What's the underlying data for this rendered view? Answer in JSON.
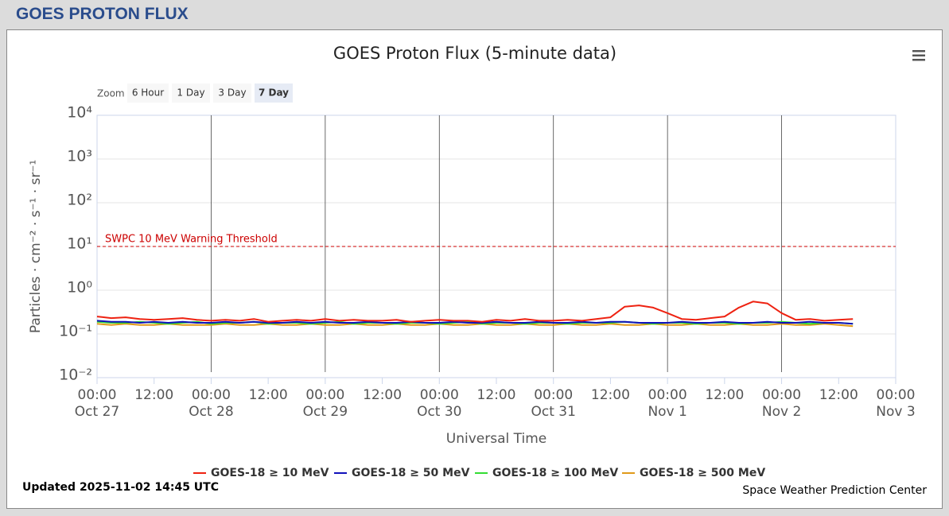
{
  "page_title": "GOES PROTON FLUX",
  "zoom": {
    "label": "Zoom",
    "buttons": [
      "6 Hour",
      "1 Day",
      "3 Day",
      "7 Day"
    ],
    "selected": 3
  },
  "chart_data": {
    "type": "line",
    "title": "GOES Proton Flux (5-minute data)",
    "x_label": "Universal Time",
    "y_label": "Particles · cm⁻² · s⁻¹ · sr⁻¹",
    "log_y": true,
    "grid": true,
    "ylim": [
      0.01,
      10000
    ],
    "yticks": [
      {
        "value": 0.01,
        "label": "10⁻²"
      },
      {
        "value": 0.1,
        "label": "10⁻¹"
      },
      {
        "value": 1,
        "label": "10⁰"
      },
      {
        "value": 10,
        "label": "10¹"
      },
      {
        "value": 100,
        "label": "10²"
      },
      {
        "value": 1000,
        "label": "10³"
      },
      {
        "value": 10000,
        "label": "10⁴"
      }
    ],
    "xlim": [
      "Oct 27 00:00",
      "Nov 3 00:00"
    ],
    "xticks": [
      {
        "value": "Oct 27 00:00",
        "label": "00:00",
        "date": "Oct 27"
      },
      {
        "value": "Oct 27 12:00",
        "label": "12:00"
      },
      {
        "value": "Oct 28 00:00",
        "label": "00:00",
        "date": "Oct 28"
      },
      {
        "value": "Oct 28 12:00",
        "label": "12:00"
      },
      {
        "value": "Oct 29 00:00",
        "label": "00:00",
        "date": "Oct 29"
      },
      {
        "value": "Oct 29 12:00",
        "label": "12:00"
      },
      {
        "value": "Oct 30 00:00",
        "label": "00:00",
        "date": "Oct 30"
      },
      {
        "value": "Oct 30 12:00",
        "label": "12:00"
      },
      {
        "value": "Oct 31 00:00",
        "label": "00:00",
        "date": "Oct 31"
      },
      {
        "value": "Oct 31 12:00",
        "label": "12:00"
      },
      {
        "value": "Nov 1 00:00",
        "label": "00:00",
        "date": "Nov 1"
      },
      {
        "value": "Nov 1 12:00",
        "label": "12:00"
      },
      {
        "value": "Nov 2 00:00",
        "label": "00:00",
        "date": "Nov 2"
      },
      {
        "value": "Nov 2 12:00",
        "label": "12:00"
      },
      {
        "value": "Nov 3 00:00",
        "label": "00:00",
        "date": "Nov 3"
      }
    ],
    "threshold": {
      "value": 10,
      "label": "SWPC 10 MeV Warning Threshold",
      "color": "#cc0000"
    },
    "x": [
      "Oct 27 00:00",
      "Oct 27 03:00",
      "Oct 27 06:00",
      "Oct 27 09:00",
      "Oct 27 12:00",
      "Oct 27 15:00",
      "Oct 27 18:00",
      "Oct 27 21:00",
      "Oct 28 00:00",
      "Oct 28 03:00",
      "Oct 28 06:00",
      "Oct 28 09:00",
      "Oct 28 12:00",
      "Oct 28 15:00",
      "Oct 28 18:00",
      "Oct 28 21:00",
      "Oct 29 00:00",
      "Oct 29 03:00",
      "Oct 29 06:00",
      "Oct 29 09:00",
      "Oct 29 12:00",
      "Oct 29 15:00",
      "Oct 29 18:00",
      "Oct 29 21:00",
      "Oct 30 00:00",
      "Oct 30 03:00",
      "Oct 30 06:00",
      "Oct 30 09:00",
      "Oct 30 12:00",
      "Oct 30 15:00",
      "Oct 30 18:00",
      "Oct 30 21:00",
      "Oct 31 00:00",
      "Oct 31 03:00",
      "Oct 31 06:00",
      "Oct 31 09:00",
      "Oct 31 12:00",
      "Oct 31 15:00",
      "Oct 31 18:00",
      "Oct 31 21:00",
      "Nov 1 00:00",
      "Nov 1 03:00",
      "Nov 1 06:00",
      "Nov 1 09:00",
      "Nov 1 12:00",
      "Nov 1 15:00",
      "Nov 1 18:00",
      "Nov 1 21:00",
      "Nov 2 00:00",
      "Nov 2 03:00",
      "Nov 2 06:00",
      "Nov 2 09:00",
      "Nov 2 12:00",
      "Nov 2 15:00"
    ],
    "series": [
      {
        "name": "GOES-18 ≥ 10 MeV",
        "color": "#ee2211",
        "values": [
          0.25,
          0.23,
          0.24,
          0.22,
          0.21,
          0.22,
          0.23,
          0.21,
          0.2,
          0.21,
          0.2,
          0.22,
          0.19,
          0.2,
          0.21,
          0.2,
          0.22,
          0.2,
          0.21,
          0.2,
          0.2,
          0.21,
          0.19,
          0.2,
          0.21,
          0.2,
          0.2,
          0.19,
          0.21,
          0.2,
          0.22,
          0.2,
          0.2,
          0.21,
          0.2,
          0.22,
          0.24,
          0.42,
          0.45,
          0.4,
          0.3,
          0.22,
          0.21,
          0.23,
          0.25,
          0.4,
          0.55,
          0.5,
          0.3,
          0.21,
          0.22,
          0.2,
          0.21,
          0.22
        ]
      },
      {
        "name": "GOES-18 ≥ 50 MeV",
        "color": "#1111bb",
        "values": [
          0.2,
          0.19,
          0.19,
          0.18,
          0.19,
          0.18,
          0.19,
          0.18,
          0.18,
          0.19,
          0.18,
          0.19,
          0.18,
          0.18,
          0.19,
          0.18,
          0.19,
          0.18,
          0.18,
          0.19,
          0.18,
          0.18,
          0.19,
          0.18,
          0.18,
          0.19,
          0.18,
          0.18,
          0.19,
          0.18,
          0.18,
          0.19,
          0.18,
          0.18,
          0.19,
          0.18,
          0.19,
          0.19,
          0.18,
          0.18,
          0.18,
          0.19,
          0.18,
          0.18,
          0.19,
          0.18,
          0.18,
          0.19,
          0.18,
          0.18,
          0.19,
          0.18,
          0.18,
          0.17
        ]
      },
      {
        "name": "GOES-18 ≥ 100 MeV",
        "color": "#33dd33",
        "values": [
          0.19,
          0.18,
          0.18,
          0.19,
          0.18,
          0.17,
          0.18,
          0.19,
          0.17,
          0.18,
          0.18,
          0.19,
          0.17,
          0.18,
          0.18,
          0.17,
          0.18,
          0.19,
          0.17,
          0.18,
          0.18,
          0.17,
          0.18,
          0.18,
          0.17,
          0.18,
          0.19,
          0.17,
          0.18,
          0.18,
          0.17,
          0.18,
          0.18,
          0.17,
          0.18,
          0.18,
          0.18,
          0.19,
          0.18,
          0.17,
          0.18,
          0.18,
          0.17,
          0.18,
          0.18,
          0.17,
          0.18,
          0.18,
          0.19,
          0.18,
          0.17,
          0.18,
          0.18,
          0.17
        ]
      },
      {
        "name": "GOES-18 ≥ 500 MeV",
        "color": "#e09a1a",
        "values": [
          0.17,
          0.16,
          0.17,
          0.16,
          0.16,
          0.17,
          0.16,
          0.16,
          0.16,
          0.17,
          0.16,
          0.16,
          0.17,
          0.16,
          0.16,
          0.17,
          0.16,
          0.16,
          0.17,
          0.16,
          0.16,
          0.17,
          0.16,
          0.16,
          0.17,
          0.16,
          0.16,
          0.17,
          0.16,
          0.16,
          0.17,
          0.16,
          0.16,
          0.17,
          0.16,
          0.16,
          0.17,
          0.16,
          0.16,
          0.17,
          0.16,
          0.16,
          0.17,
          0.16,
          0.16,
          0.17,
          0.16,
          0.16,
          0.17,
          0.16,
          0.16,
          0.17,
          0.16,
          0.15
        ]
      }
    ],
    "updated": "Updated 2025-11-02 14:45 UTC",
    "credits": "Space Weather Prediction Center"
  }
}
